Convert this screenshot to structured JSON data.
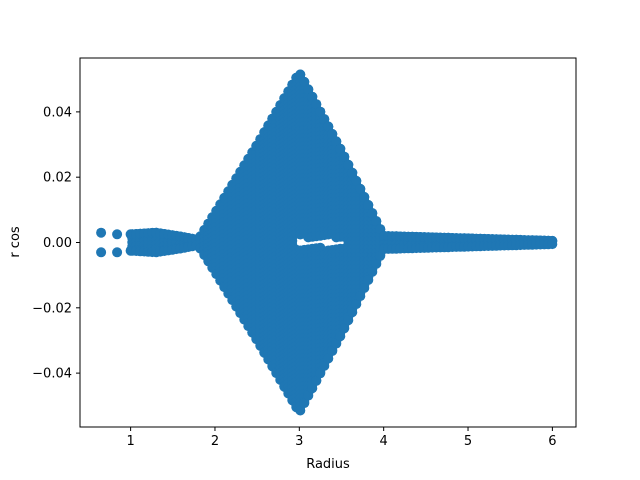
{
  "chart_data": {
    "type": "scatter",
    "title": "",
    "xlabel": "Radius",
    "ylabel": "r  cos",
    "xlim": [
      0.4,
      6.28
    ],
    "ylim": [
      -0.0565,
      0.0565
    ],
    "xticks": [
      1,
      2,
      3,
      4,
      5,
      6
    ],
    "xtick_labels": [
      "1",
      "2",
      "3",
      "4",
      "5",
      "6"
    ],
    "yticks": [
      -0.04,
      -0.02,
      0.0,
      0.02,
      0.04
    ],
    "ytick_labels": [
      "−0.04",
      "−0.02",
      "0.00",
      "0.02",
      "0.04"
    ],
    "grid": false,
    "legend": "none",
    "marker_color": "#1f77b4",
    "envelope": {
      "description_points": [
        {
          "x": 0.65,
          "y_max": 0.003
        },
        {
          "x": 0.84,
          "y_max": 0.0025
        },
        {
          "x": 1.0,
          "y_max": 0.0025
        },
        {
          "x": 1.3,
          "y_max": 0.003
        },
        {
          "x": 1.6,
          "y_max": 0.0018
        },
        {
          "x": 1.8,
          "y_max": 0.0008
        },
        {
          "x": 2.0,
          "y_max": 0.009
        },
        {
          "x": 2.5,
          "y_max": 0.03
        },
        {
          "x": 3.0,
          "y_max": 0.052
        },
        {
          "x": 3.5,
          "y_max": 0.028
        },
        {
          "x": 4.0,
          "y_max": 0.002
        },
        {
          "x": 6.0,
          "y_max": 0.0005
        }
      ]
    }
  }
}
